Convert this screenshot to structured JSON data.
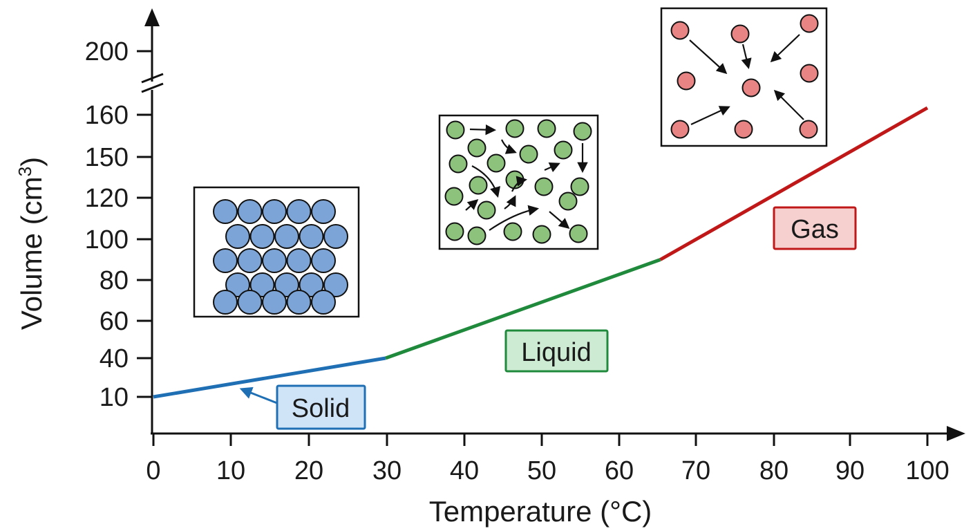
{
  "chart_data": {
    "type": "line",
    "xlabel": "Temperature (°C)",
    "ylabel_main": "Volume (cm",
    "ylabel_sup": "3",
    "ylabel_close": ")",
    "xlim": [
      0,
      100
    ],
    "y_axis_break": true,
    "y_ticks_lower": [
      "10",
      "40",
      "60",
      "80",
      "100",
      "120",
      "150",
      "160"
    ],
    "y_ticks_upper": [
      "200"
    ],
    "x_ticks": [
      "0",
      "10",
      "20",
      "30",
      "40",
      "50",
      "60",
      "70",
      "80",
      "90",
      "100"
    ],
    "grid": false,
    "series": [
      {
        "name": "Solid",
        "color": "#1f6fb5",
        "x": [
          0,
          30
        ],
        "y": [
          10,
          40
        ]
      },
      {
        "name": "Liquid",
        "color": "#208a3c",
        "x": [
          30,
          65.5
        ],
        "y": [
          40,
          90
        ]
      },
      {
        "name": "Gas",
        "color": "#c01818",
        "x": [
          65.5,
          100
        ],
        "y": [
          90,
          165
        ]
      }
    ],
    "labels": {
      "solid": {
        "text": "Solid",
        "bg": "#cfe4f6",
        "border": "#1f6fb5"
      },
      "liquid": {
        "text": "Liquid",
        "bg": "#cdebd3",
        "border": "#208a3c"
      },
      "gas": {
        "text": "Gas",
        "bg": "#f6cfcf",
        "border": "#c01818"
      }
    },
    "particle_colors": {
      "solid": "#7ca4d6",
      "liquid": "#8dc27d",
      "gas": "#e88484"
    },
    "insets": [
      "solid-particles-inset",
      "liquid-particles-inset",
      "gas-particles-inset"
    ]
  }
}
